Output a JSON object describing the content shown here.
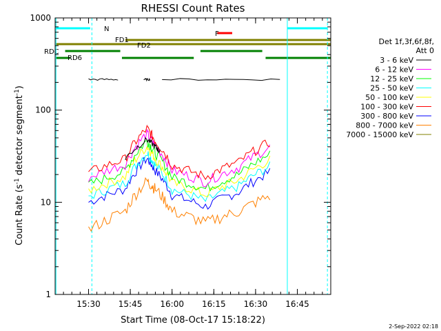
{
  "chart_data": {
    "type": "line",
    "title": "RHESSI Count Rates",
    "xlabel": "Start Time (08-Oct-17 15:18:22)",
    "ylabel_main": "Count Rate (s",
    "ylabel_sup1": "-1",
    "ylabel_mid": " detector segment",
    "ylabel_sup2": "-1",
    "ylabel_end": ")",
    "y_scale": "log",
    "ylim": [
      1,
      1000
    ],
    "xlim_minutes": [
      15.3,
      16.95
    ],
    "x_ticks": [
      {
        "label": "15:30",
        "value": 15.5
      },
      {
        "label": "15:45",
        "value": 15.75
      },
      {
        "label": "16:00",
        "value": 16.0
      },
      {
        "label": "16:15",
        "value": 16.25
      },
      {
        "label": "16:30",
        "value": 16.5
      },
      {
        "label": "16:45",
        "value": 16.75
      }
    ],
    "y_ticks": [
      {
        "label": "1",
        "value": 1
      },
      {
        "label": "10",
        "value": 10
      },
      {
        "label": "100",
        "value": 100
      },
      {
        "label": "1000",
        "value": 1000
      }
    ],
    "legend": {
      "header1": "Det 1f,3f,6f,8f,",
      "header2": "Att 0",
      "placement": "right"
    },
    "series": [
      {
        "name": "3 - 6 keV",
        "color": "#000000"
      },
      {
        "name": "6 - 12 keV",
        "color": "#ff00ff"
      },
      {
        "name": "12 - 25 keV",
        "color": "#00ff00"
      },
      {
        "name": "25 - 50 keV",
        "color": "#00ffff"
      },
      {
        "name": "50 - 100 keV",
        "color": "#ffff00"
      },
      {
        "name": "100 - 300 keV",
        "color": "#ff0000"
      },
      {
        "name": "300 - 800 keV",
        "color": "#0000ff"
      },
      {
        "name": "800 - 7000 keV",
        "color": "#ff8000"
      },
      {
        "name": "7000 - 15000 keV",
        "color": "#808000"
      }
    ],
    "curve_points": {
      "low_band": [
        [
          15.5,
          10
        ],
        [
          15.72,
          14
        ],
        [
          15.85,
          30
        ],
        [
          15.9,
          22
        ],
        [
          16.0,
          12
        ],
        [
          16.2,
          9
        ],
        [
          16.4,
          13
        ],
        [
          16.6,
          22
        ]
      ],
      "flat_black": [
        [
          15.5,
          215
        ],
        [
          15.58,
          215
        ],
        [
          15.62,
          215
        ]
      ],
      "orange": [
        [
          15.5,
          5
        ],
        [
          15.72,
          8
        ],
        [
          15.85,
          17
        ],
        [
          15.9,
          14
        ],
        [
          16.0,
          8
        ],
        [
          16.2,
          6
        ],
        [
          16.4,
          8
        ],
        [
          16.6,
          12
        ]
      ],
      "stack_factors": {
        "red": 2.1,
        "magenta": 1.85,
        "green": 1.55,
        "yellow": 1.35,
        "cyan": 1.15,
        "blue": 1.0
      }
    },
    "state_bars": {
      "N": {
        "label": "N",
        "color": "#00ffff"
      },
      "FD1": {
        "label": "FD1",
        "color": "#808000"
      },
      "FD2": {
        "label": "FD2",
        "color": "#808000"
      },
      "F": {
        "label": "F",
        "color": "#ff0000"
      },
      "RDC": {
        "label": "RDC",
        "color": "#008000"
      },
      "RD6": {
        "label": "RD6",
        "color": "#008000"
      }
    },
    "grid": false,
    "timestamp": "2-Sep-2022 02:18"
  }
}
